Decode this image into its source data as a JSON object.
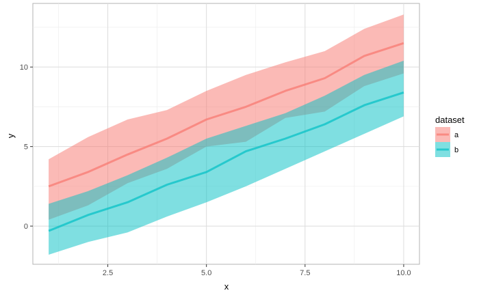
{
  "chart_data": {
    "type": "line",
    "title": "",
    "xlabel": "x",
    "ylabel": "y",
    "xlim": [
      0.6,
      10.4
    ],
    "ylim": [
      -2.4,
      14.0
    ],
    "x_ticks": [
      2.5,
      5.0,
      7.5,
      10.0
    ],
    "x_tick_labels": [
      "2.5",
      "5.0",
      "7.5",
      "10.0"
    ],
    "y_ticks": [
      0,
      5,
      10
    ],
    "y_tick_labels": [
      "0",
      "5",
      "10"
    ],
    "grid": true,
    "legend": {
      "title": "dataset",
      "placement": "right"
    },
    "x": [
      1,
      2,
      3,
      4,
      5,
      6,
      7,
      8,
      9,
      10
    ],
    "series": [
      {
        "name": "a",
        "color": "#F8766D",
        "values": [
          2.5,
          3.4,
          4.5,
          5.5,
          6.7,
          7.5,
          8.5,
          9.3,
          10.7,
          11.5
        ],
        "upper": [
          4.2,
          5.6,
          6.7,
          7.3,
          8.5,
          9.5,
          10.3,
          11.0,
          12.4,
          13.3
        ],
        "lower": [
          0.4,
          1.3,
          2.7,
          3.6,
          5.0,
          5.3,
          6.8,
          7.2,
          8.8,
          9.6
        ]
      },
      {
        "name": "b",
        "color": "#00BFC4",
        "values": [
          -0.3,
          0.7,
          1.5,
          2.6,
          3.4,
          4.7,
          5.5,
          6.4,
          7.6,
          8.4
        ],
        "upper": [
          1.4,
          2.2,
          3.2,
          4.3,
          5.5,
          6.3,
          7.1,
          8.2,
          9.5,
          10.4
        ],
        "lower": [
          -1.8,
          -1.0,
          -0.4,
          0.6,
          1.5,
          2.5,
          3.6,
          4.7,
          5.8,
          6.9
        ]
      }
    ]
  }
}
